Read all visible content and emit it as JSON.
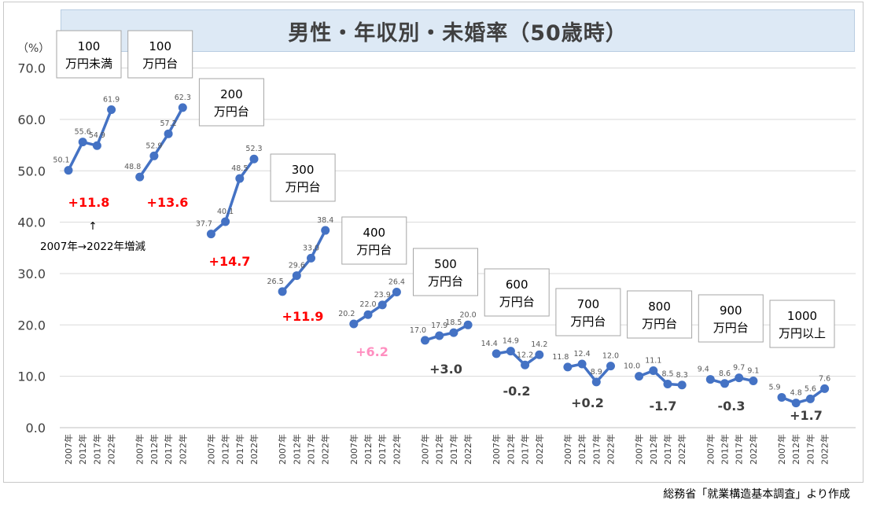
{
  "chart_data": {
    "type": "line",
    "title": "男性・年収別・未婚率（50歳時）",
    "ylabel": "（%）",
    "ylim": [
      0,
      70
    ],
    "yticks": [
      "0.0",
      "10.0",
      "20.0",
      "30.0",
      "40.0",
      "50.0",
      "60.0",
      "70.0"
    ],
    "years": [
      "2007年",
      "2012年",
      "2017年",
      "2022年"
    ],
    "grid": true,
    "groups": [
      {
        "label": [
          "100",
          "万円未満"
        ],
        "values": [
          50.1,
          55.6,
          54.9,
          61.9
        ],
        "labels": [
          "50.1",
          "55.6",
          "54.9",
          "61.9"
        ],
        "change": "+11.8",
        "change_color": "#ff0000"
      },
      {
        "label": [
          "100",
          "万円台"
        ],
        "values": [
          48.8,
          52.9,
          57.2,
          62.3
        ],
        "labels": [
          "48.8",
          "52.9",
          "57.2",
          "62.3"
        ],
        "change": "+13.6",
        "change_color": "#ff0000"
      },
      {
        "label": [
          "200",
          "万円台"
        ],
        "values": [
          37.7,
          40.1,
          48.5,
          52.3
        ],
        "labels": [
          "37.7",
          "40.1",
          "48.5",
          "52.3"
        ],
        "change": "+14.7",
        "change_color": "#ff0000"
      },
      {
        "label": [
          "300",
          "万円台"
        ],
        "values": [
          26.5,
          29.6,
          33.0,
          38.4
        ],
        "labels": [
          "26.5",
          "29.6",
          "33.0",
          "38.4"
        ],
        "change": "+11.9",
        "change_color": "#ff0000"
      },
      {
        "label": [
          "400",
          "万円台"
        ],
        "values": [
          20.2,
          22.0,
          23.9,
          26.4
        ],
        "labels": [
          "20.2",
          "22.0",
          "23.9",
          "26.4"
        ],
        "change": "+6.2",
        "change_color": "#ff8fc0"
      },
      {
        "label": [
          "500",
          "万円台"
        ],
        "values": [
          17.0,
          17.9,
          18.5,
          20.0
        ],
        "labels": [
          "17.0",
          "17.9",
          "18.5",
          "20.0"
        ],
        "change": "+3.0",
        "change_color": "#404040"
      },
      {
        "label": [
          "600",
          "万円台"
        ],
        "values": [
          14.4,
          14.9,
          12.2,
          14.2
        ],
        "labels": [
          "14.4",
          "14.9",
          "12.2",
          "14.2"
        ],
        "change": "-0.2",
        "change_color": "#404040"
      },
      {
        "label": [
          "700",
          "万円台"
        ],
        "values": [
          11.8,
          12.4,
          8.9,
          12.0
        ],
        "labels": [
          "11.8",
          "12.4",
          "8.9",
          "12.0"
        ],
        "change": "+0.2",
        "change_color": "#404040"
      },
      {
        "label": [
          "800",
          "万円台"
        ],
        "values": [
          10.0,
          11.1,
          8.5,
          8.3
        ],
        "labels": [
          "10.0",
          "11.1",
          "8.5",
          "8.3"
        ],
        "change": "-1.7",
        "change_color": "#404040"
      },
      {
        "label": [
          "900",
          "万円台"
        ],
        "values": [
          9.4,
          8.6,
          9.7,
          9.1
        ],
        "labels": [
          "9.4",
          "8.6",
          "9.7",
          "9.1"
        ],
        "change": "-0.3",
        "change_color": "#404040"
      },
      {
        "label": [
          "1000",
          "万円以上"
        ],
        "values": [
          5.9,
          4.8,
          5.6,
          7.6
        ],
        "labels": [
          "5.9",
          "4.8",
          "5.6",
          "7.6"
        ],
        "change": "+1.7",
        "change_color": "#404040"
      }
    ],
    "annotation_arrow": "↑",
    "annotation_text": "2007年→2022年増減",
    "series_color": "#4472c4"
  },
  "source": "総務省「就業構造基本調査」より作成"
}
